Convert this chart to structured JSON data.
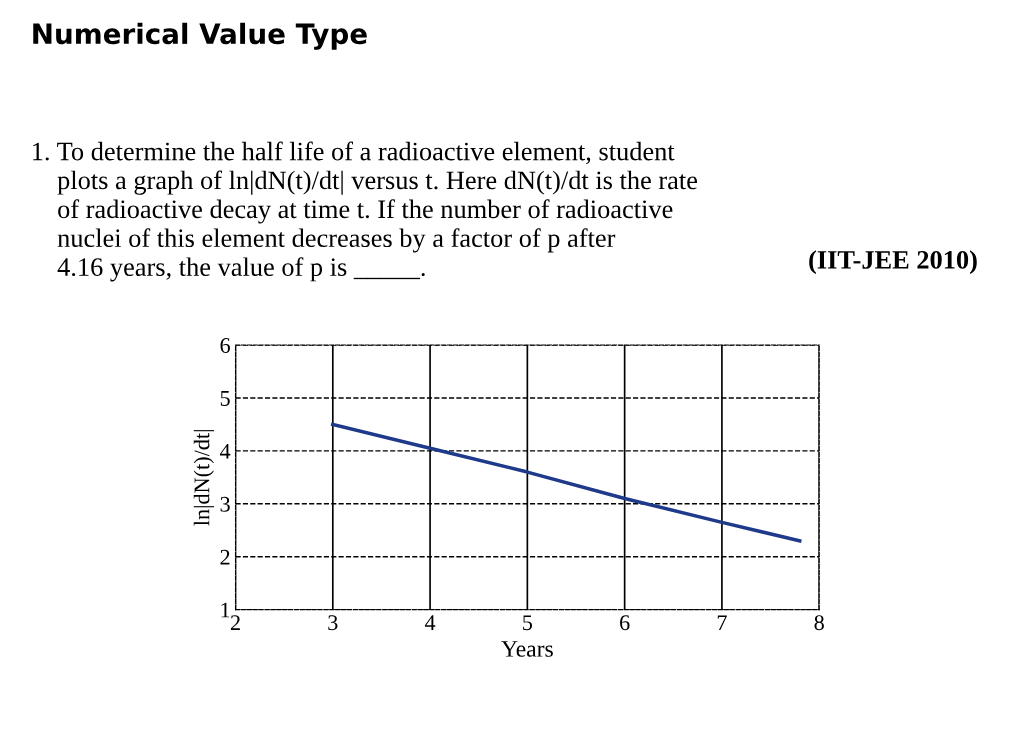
{
  "chart_data": {
    "type": "line",
    "title": "Numerical Value Type",
    "annotations": [
      "1. To determine the half life of a radioactive element, student\n    plots a graph of ln|dN(t)/dt| versus t. Here dN(t)/dt is the rate\n    of radioactive decay at time t. If the number of radioactive\n    nuclei of this element decreases by a factor of p after\n    4.16 years, the value of p is _____.",
      "(IIT-JEE 2010)"
    ],
    "x": [
      3,
      4,
      5,
      6,
      7,
      7.8
    ],
    "series": [
      {
        "color": "#1f3a8a",
        "values": [
          4.5,
          4.05,
          3.6,
          3.1,
          2.65,
          2.3
        ]
      }
    ],
    "xlim": [
      2,
      8
    ],
    "ylim": [
      1,
      6
    ],
    "xticks": [
      2,
      3,
      4,
      5,
      6,
      7,
      8
    ],
    "yticks": [
      1,
      2,
      3,
      4,
      5,
      6
    ],
    "xlabel": "Years",
    "ylabel": "ln|dN(t)/dt|",
    "grid": true,
    "line_style": "solid",
    "marker": "none"
  }
}
